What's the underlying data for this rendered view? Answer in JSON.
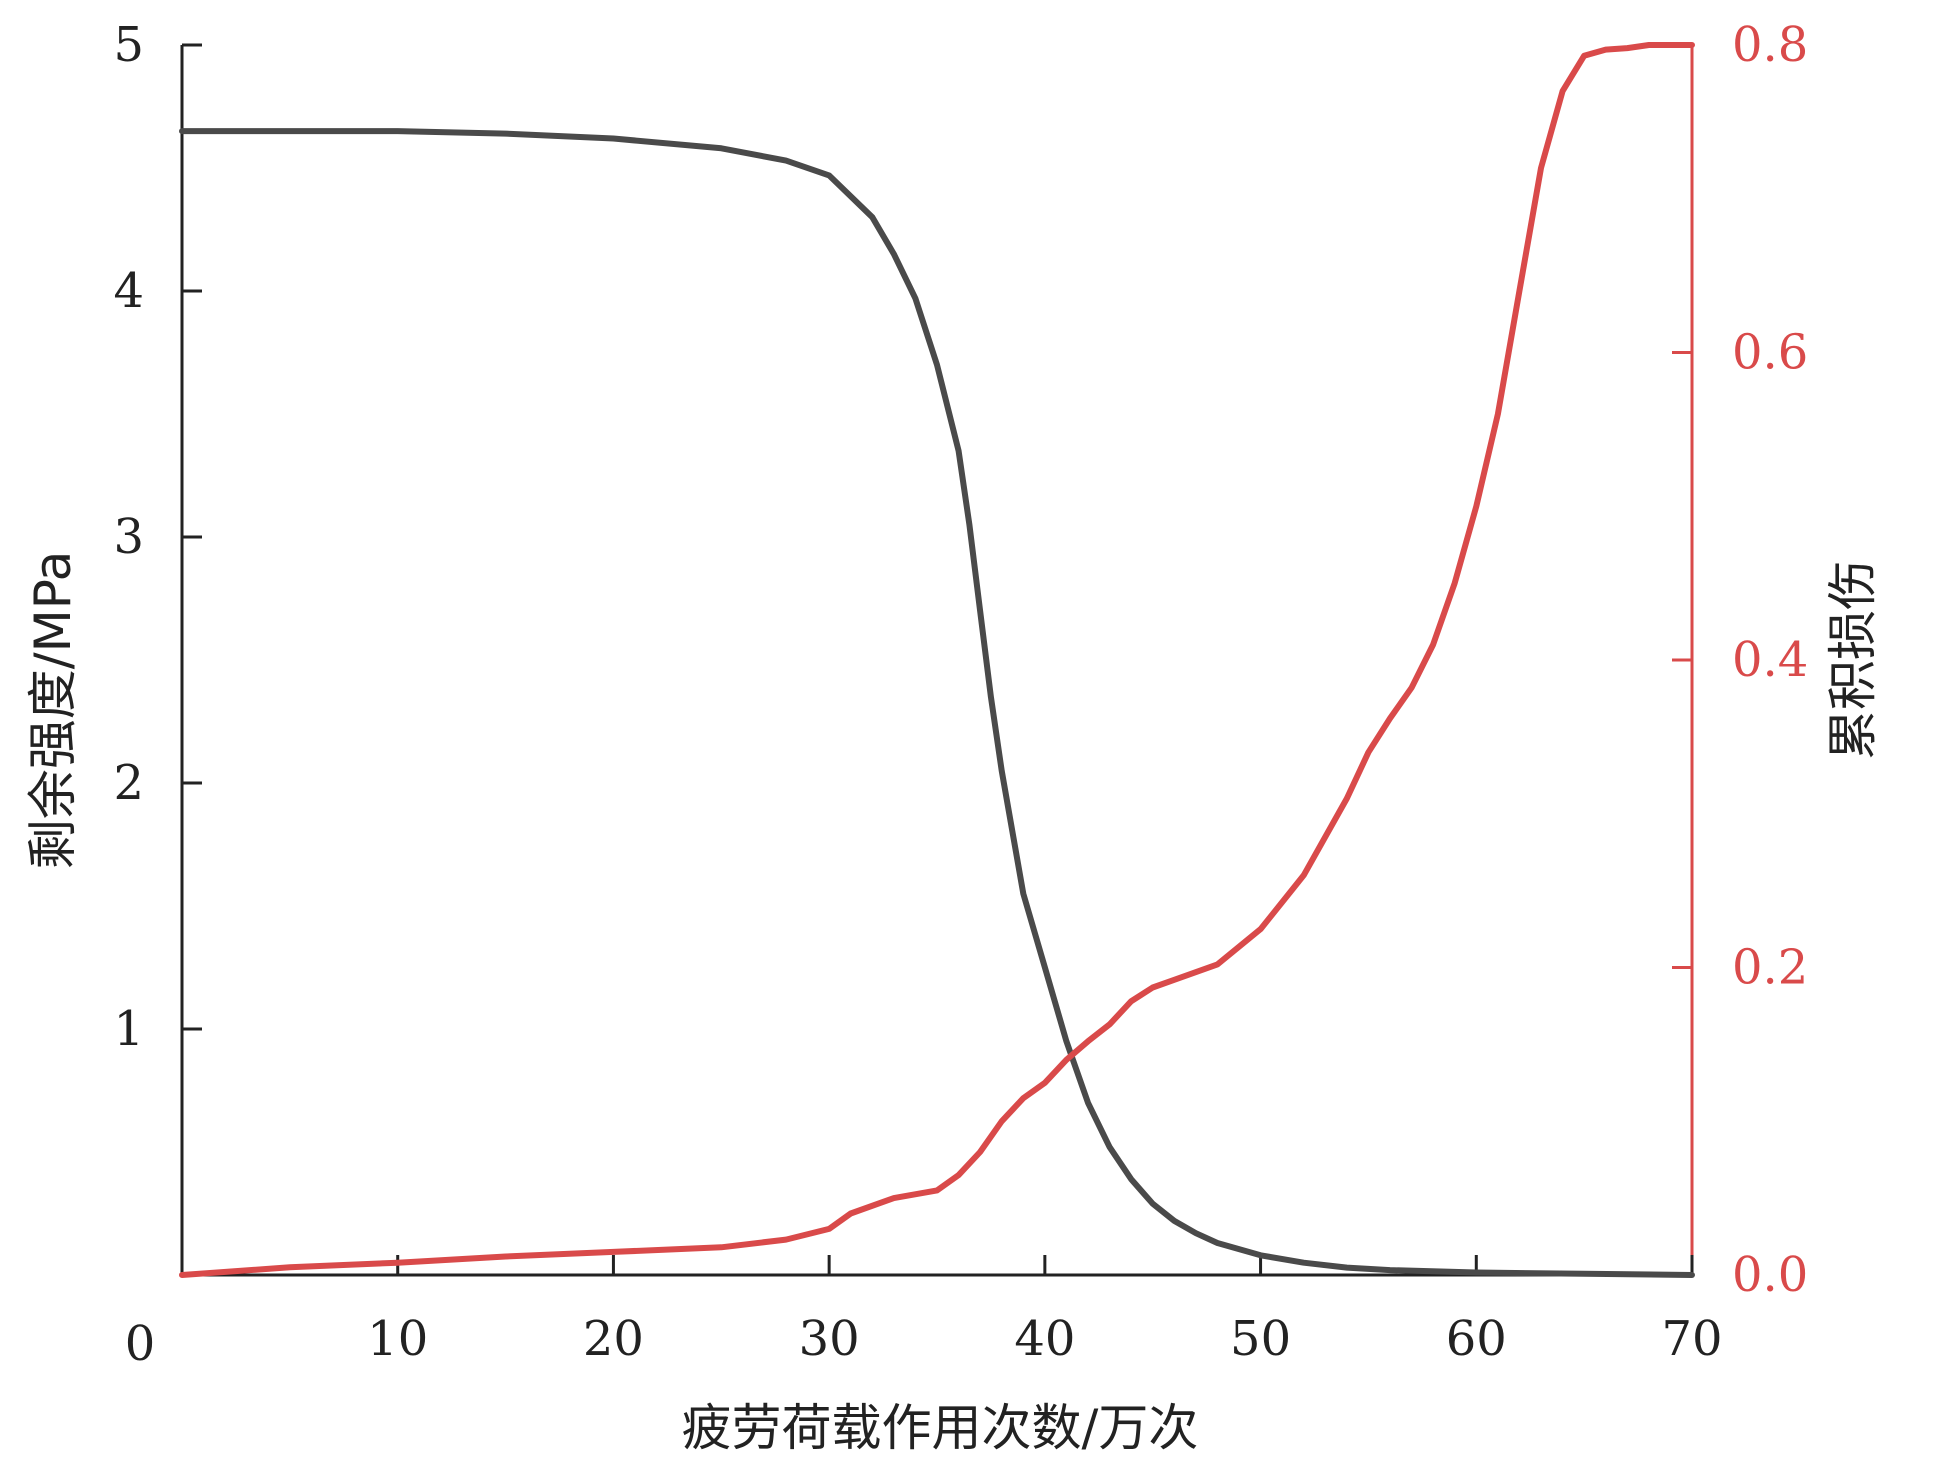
{
  "chart_data": {
    "type": "line",
    "title": "",
    "xlabel": "疲劳荷载作用次数/万次",
    "ylabel_left": "剩余强度/MPa",
    "ylabel_right": "累积损伤",
    "xlim": [
      0,
      70
    ],
    "ylim_left": [
      0,
      5
    ],
    "ylim_right": [
      0,
      0.8
    ],
    "x_ticks": [
      10,
      20,
      30,
      40,
      50,
      60,
      70
    ],
    "y_left_ticks": [
      1,
      2,
      3,
      4,
      5
    ],
    "y_right_ticks": [
      0.0,
      0.2,
      0.4,
      0.6,
      0.8
    ],
    "origin_label": "0",
    "grid": false,
    "colors": {
      "strength": "#4a4a4a",
      "damage": "#d94a4a",
      "axis": "#222222"
    },
    "series": [
      {
        "axis": "left",
        "x": [
          0,
          5,
          10,
          15,
          20,
          25,
          28,
          30,
          32,
          33,
          34,
          35,
          36,
          36.5,
          37,
          37.5,
          38,
          39,
          40,
          41,
          42,
          43,
          44,
          45,
          46,
          47,
          48,
          50,
          52,
          54,
          56,
          60,
          65,
          70
        ],
        "values": [
          4.65,
          4.65,
          4.65,
          4.64,
          4.62,
          4.58,
          4.53,
          4.47,
          4.3,
          4.15,
          3.97,
          3.7,
          3.35,
          3.05,
          2.7,
          2.35,
          2.05,
          1.55,
          1.25,
          0.95,
          0.7,
          0.52,
          0.39,
          0.29,
          0.22,
          0.17,
          0.13,
          0.08,
          0.05,
          0.03,
          0.02,
          0.01,
          0.005,
          0.0
        ]
      },
      {
        "axis": "right",
        "x": [
          0,
          5,
          10,
          15,
          20,
          25,
          28,
          30,
          31,
          33,
          35,
          36,
          37,
          38,
          39,
          40,
          41,
          42,
          43,
          44,
          45,
          46,
          48,
          50,
          52,
          54,
          55,
          56,
          57,
          58,
          59,
          60,
          61,
          62,
          63,
          64,
          65,
          66,
          67,
          68,
          70
        ],
        "values": [
          0.0,
          0.005,
          0.008,
          0.012,
          0.015,
          0.018,
          0.023,
          0.03,
          0.04,
          0.05,
          0.055,
          0.065,
          0.08,
          0.1,
          0.115,
          0.125,
          0.14,
          0.152,
          0.163,
          0.178,
          0.187,
          0.192,
          0.202,
          0.225,
          0.26,
          0.31,
          0.34,
          0.362,
          0.382,
          0.41,
          0.45,
          0.5,
          0.56,
          0.64,
          0.72,
          0.77,
          0.793,
          0.797,
          0.798,
          0.8,
          0.8
        ]
      }
    ]
  }
}
